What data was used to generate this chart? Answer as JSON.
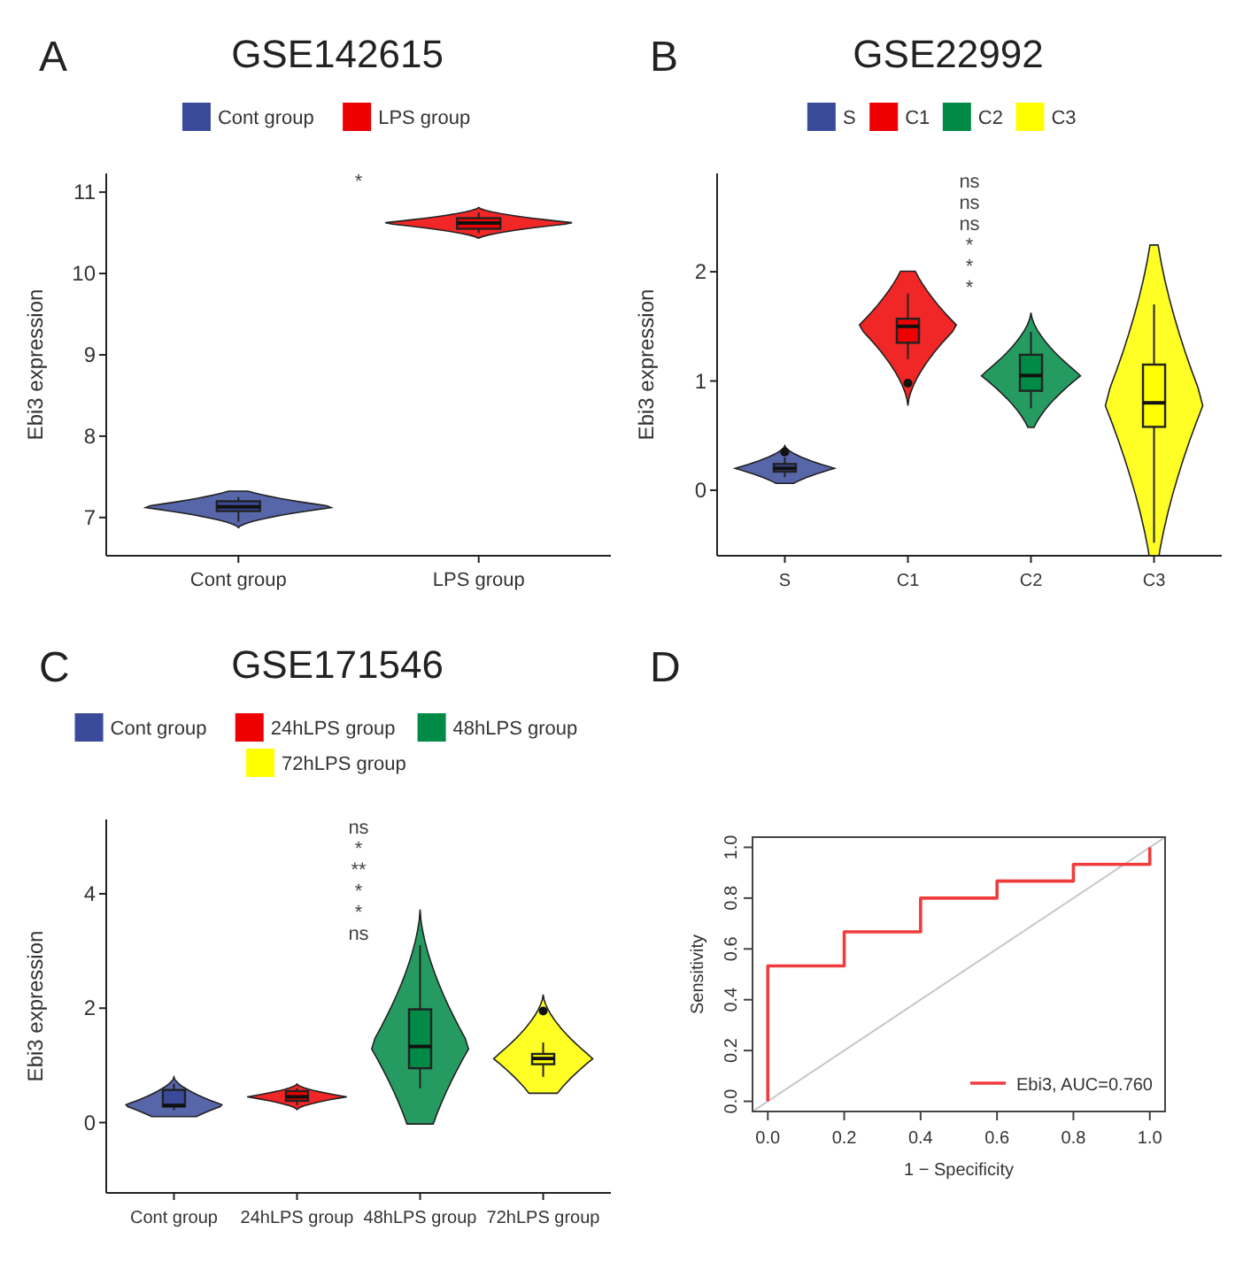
{
  "chart_data": [
    {
      "type": "box",
      "title": "GSE142615",
      "ylabel": "Ebi3 expression",
      "categories": [
        "Cont group",
        "LPS group"
      ],
      "legend": "top",
      "ylim": [
        6.53,
        11.23
      ],
      "yticks": [
        7,
        8,
        9,
        10,
        11
      ],
      "series": [
        {
          "name": "Cont group",
          "color": "#3a4a9a",
          "boxes": [
            {
              "low": 6.95,
              "q1": 7.08,
              "median": 7.13,
              "q3": 7.2,
              "high": 7.25
            },
            null
          ]
        },
        {
          "name": "LPS group",
          "color": "#ee0000",
          "boxes": [
            null,
            {
              "low": 10.5,
              "q1": 10.55,
              "median": 10.62,
              "q3": 10.68,
              "high": 10.75
            }
          ]
        }
      ],
      "annotations": [
        "A",
        "*"
      ]
    },
    {
      "type": "box",
      "title": "GSE22992",
      "ylabel": "Ebi3 expression",
      "categories": [
        "S",
        "C1",
        "C2",
        "C3"
      ],
      "legend": "top",
      "ylim": [
        -0.6,
        2.9
      ],
      "yticks": [
        0,
        1,
        2
      ],
      "series": [
        {
          "name": "S",
          "color": "#3a4a9a",
          "boxes": [
            {
              "low": 0.12,
              "q1": 0.17,
              "median": 0.2,
              "q3": 0.24,
              "high": 0.3,
              "outliers": [
                0.35
              ]
            },
            null,
            null,
            null
          ]
        },
        {
          "name": "C1",
          "color": "#ee0000",
          "boxes": [
            null,
            {
              "low": 1.2,
              "q1": 1.35,
              "median": 1.5,
              "q3": 1.57,
              "high": 1.8,
              "outliers": [
                0.98
              ]
            },
            null,
            null
          ]
        },
        {
          "name": "C2",
          "color": "#008a45",
          "boxes": [
            null,
            null,
            {
              "low": 0.75,
              "q1": 0.91,
              "median": 1.05,
              "q3": 1.24,
              "high": 1.45
            },
            null
          ]
        },
        {
          "name": "C3",
          "color": "#ffff00",
          "boxes": [
            null,
            null,
            null,
            {
              "low": -0.48,
              "q1": 0.58,
              "median": 0.8,
              "q3": 1.15,
              "high": 1.7
            }
          ]
        }
      ],
      "annotations": [
        "B",
        "*",
        "*",
        "*",
        "ns",
        "ns",
        "ns"
      ]
    },
    {
      "type": "box",
      "title": "GSE171546",
      "ylabel": "Ebi3 expression",
      "categories": [
        "Cont group",
        "24hLPS group",
        "48hLPS group",
        "72hLPS group"
      ],
      "legend": "top",
      "ylim": [
        -1.23,
        5.3
      ],
      "yticks": [
        0,
        2,
        4
      ],
      "series": [
        {
          "name": "Cont group",
          "color": "#3a4a9a",
          "boxes": [
            {
              "low": 0.22,
              "q1": 0.28,
              "median": 0.3,
              "q3": 0.57,
              "high": 0.68
            },
            null,
            null,
            null
          ]
        },
        {
          "name": "24hLPS group",
          "color": "#ee0000",
          "boxes": [
            null,
            {
              "low": 0.3,
              "q1": 0.38,
              "median": 0.45,
              "q3": 0.55,
              "high": 0.6
            },
            null,
            null
          ]
        },
        {
          "name": "48hLPS group",
          "color": "#008a45",
          "boxes": [
            null,
            null,
            {
              "low": 0.6,
              "q1": 0.95,
              "median": 1.33,
              "q3": 1.98,
              "high": 3.1
            },
            null
          ]
        },
        {
          "name": "72hLPS group",
          "color": "#ffff00",
          "boxes": [
            null,
            null,
            null,
            {
              "low": 0.8,
              "q1": 1.02,
              "median": 1.12,
              "q3": 1.2,
              "high": 1.4,
              "outliers": [
                1.95
              ]
            }
          ]
        }
      ],
      "annotations": [
        "C",
        "ns",
        "*",
        "*",
        "**",
        "*",
        "ns"
      ]
    },
    {
      "type": "line",
      "xlabel": "1 − Specificity",
      "ylabel": "Sensitivity",
      "xlim": [
        -0.04,
        1.04
      ],
      "ylim": [
        -0.04,
        1.04
      ],
      "xticks": [
        {
          "value": 0,
          "label": "0.0"
        },
        {
          "value": 0.2,
          "label": "0.2"
        },
        {
          "value": 0.4,
          "label": "0.4"
        },
        {
          "value": 0.6,
          "label": "0.6"
        },
        {
          "value": 0.8,
          "label": "0.8"
        },
        {
          "value": 1,
          "label": "1.0"
        }
      ],
      "yticks": [
        {
          "value": 0,
          "label": "0.0"
        },
        {
          "value": 0.2,
          "label": "0.2"
        },
        {
          "value": 0.4,
          "label": "0.4"
        },
        {
          "value": 0.6,
          "label": "0.6"
        },
        {
          "value": 0.8,
          "label": "0.8"
        },
        {
          "value": 1,
          "label": "1.0"
        }
      ],
      "legend": "bottom right",
      "grid": false,
      "series": [
        {
          "x": [
            -0.04,
            1.04
          ],
          "values": [
            -0.04,
            1.04
          ],
          "color": "#c8c8c8"
        },
        {
          "name": "Ebi3, AUC=0.760",
          "color": "#f03c3c",
          "x": [
            0,
            0,
            0.2,
            0.2,
            0.4,
            0.4,
            0.6,
            0.6,
            0.8,
            0.8,
            1,
            1
          ],
          "values": [
            0,
            0.533,
            0.533,
            0.667,
            0.667,
            0.8,
            0.8,
            0.867,
            0.867,
            0.933,
            0.933,
            1
          ]
        }
      ],
      "annotations": [
        "D"
      ]
    }
  ]
}
